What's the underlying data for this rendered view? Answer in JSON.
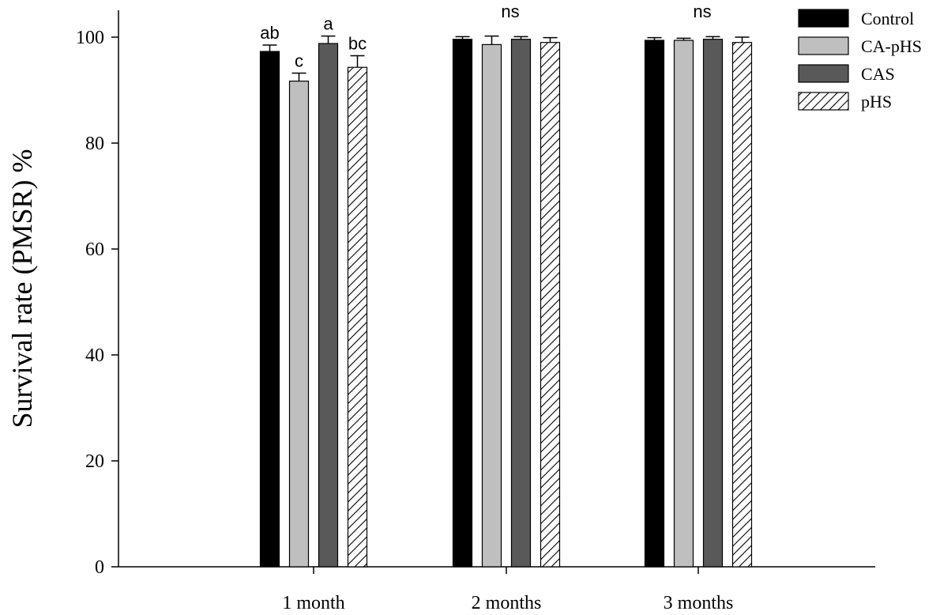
{
  "chart_data": {
    "type": "bar",
    "title": "",
    "xlabel": "",
    "ylabel": "Survival rate (PMSR) %",
    "ylim": [
      0,
      100
    ],
    "yticks": [
      0,
      20,
      40,
      60,
      80,
      100
    ],
    "grid": false,
    "legend_position": "top-right",
    "categories": [
      "1 month",
      "2 months",
      "3 months"
    ],
    "series": [
      {
        "name": "Control",
        "fill": "#000000",
        "pattern": "solid",
        "values": [
          97.3,
          99.6,
          99.4
        ],
        "errors": [
          1.2,
          0.5,
          0.5
        ]
      },
      {
        "name": "CA-pHS",
        "fill": "#bfbfbf",
        "pattern": "solid",
        "values": [
          91.7,
          98.6,
          99.4
        ],
        "errors": [
          1.5,
          1.6,
          0.4
        ]
      },
      {
        "name": "CAS",
        "fill": "#595959",
        "pattern": "solid",
        "values": [
          98.8,
          99.6,
          99.6
        ],
        "errors": [
          1.4,
          0.5,
          0.5
        ]
      },
      {
        "name": "pHS",
        "fill": "#ffffff",
        "pattern": "hatch",
        "values": [
          94.3,
          99.0,
          99.0
        ],
        "errors": [
          2.2,
          0.9,
          1.0
        ]
      }
    ],
    "annotations": [
      {
        "category": "1 month",
        "series": "Control",
        "text": "ab"
      },
      {
        "category": "1 month",
        "series": "CA-pHS",
        "text": "c"
      },
      {
        "category": "1 month",
        "series": "CAS",
        "text": "a"
      },
      {
        "category": "1 month",
        "series": "pHS",
        "text": "bc"
      },
      {
        "category": "2 months",
        "series": null,
        "text": "ns"
      },
      {
        "category": "3 months",
        "series": null,
        "text": "ns"
      }
    ]
  }
}
